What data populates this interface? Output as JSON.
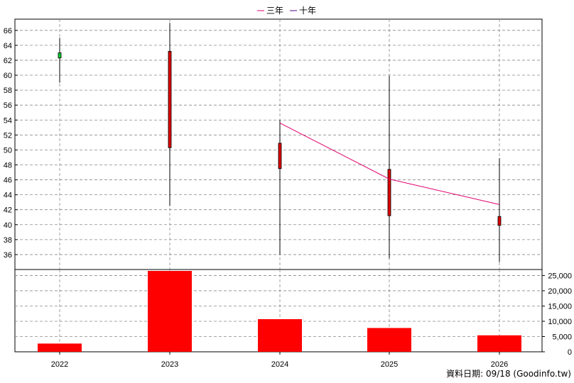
{
  "legend": {
    "ma3_label": "三年",
    "ma10_label": "十年",
    "ma3_color": "#e0006f",
    "ma10_color": "#4b0082"
  },
  "footer": {
    "source_text": "資料日期: 09/18  (Goodinfo.tw)"
  },
  "chart_data": [
    {
      "type": "candlestick",
      "x": [
        "2022",
        "2023",
        "2024",
        "2025",
        "2026"
      ],
      "open": [
        63.0,
        50.3,
        47.5,
        41.2,
        39.9
      ],
      "close": [
        62.3,
        63.2,
        50.9,
        47.4,
        41.1
      ],
      "high": [
        65.0,
        67.0,
        54.0,
        59.9,
        48.9
      ],
      "low": [
        59.0,
        42.5,
        36.0,
        35.5,
        35.0
      ],
      "ylim": [
        34,
        67.5
      ],
      "yticks": [
        36,
        38,
        40,
        42,
        44,
        46,
        48,
        50,
        52,
        54,
        56,
        58,
        60,
        62,
        64,
        66
      ],
      "rise_color": "#e00000",
      "fall_color": "#00cc33",
      "series": [
        {
          "name": "三年",
          "x": [
            "2024",
            "2025",
            "2026"
          ],
          "values": [
            53.6,
            46.1,
            42.7
          ]
        }
      ],
      "grid": true
    },
    {
      "type": "bar",
      "categories": [
        "2022",
        "2023",
        "2024",
        "2025",
        "2026"
      ],
      "values": [
        2700,
        26500,
        10700,
        7800,
        5400
      ],
      "ylim": [
        0,
        26500
      ],
      "yticks": [
        0,
        5000,
        10000,
        15000,
        20000,
        25000
      ],
      "ytick_labels": [
        "0",
        "5,000",
        "10,000",
        "15,000",
        "20,000",
        "25,000"
      ],
      "color": "#ff0000",
      "grid": true
    }
  ]
}
